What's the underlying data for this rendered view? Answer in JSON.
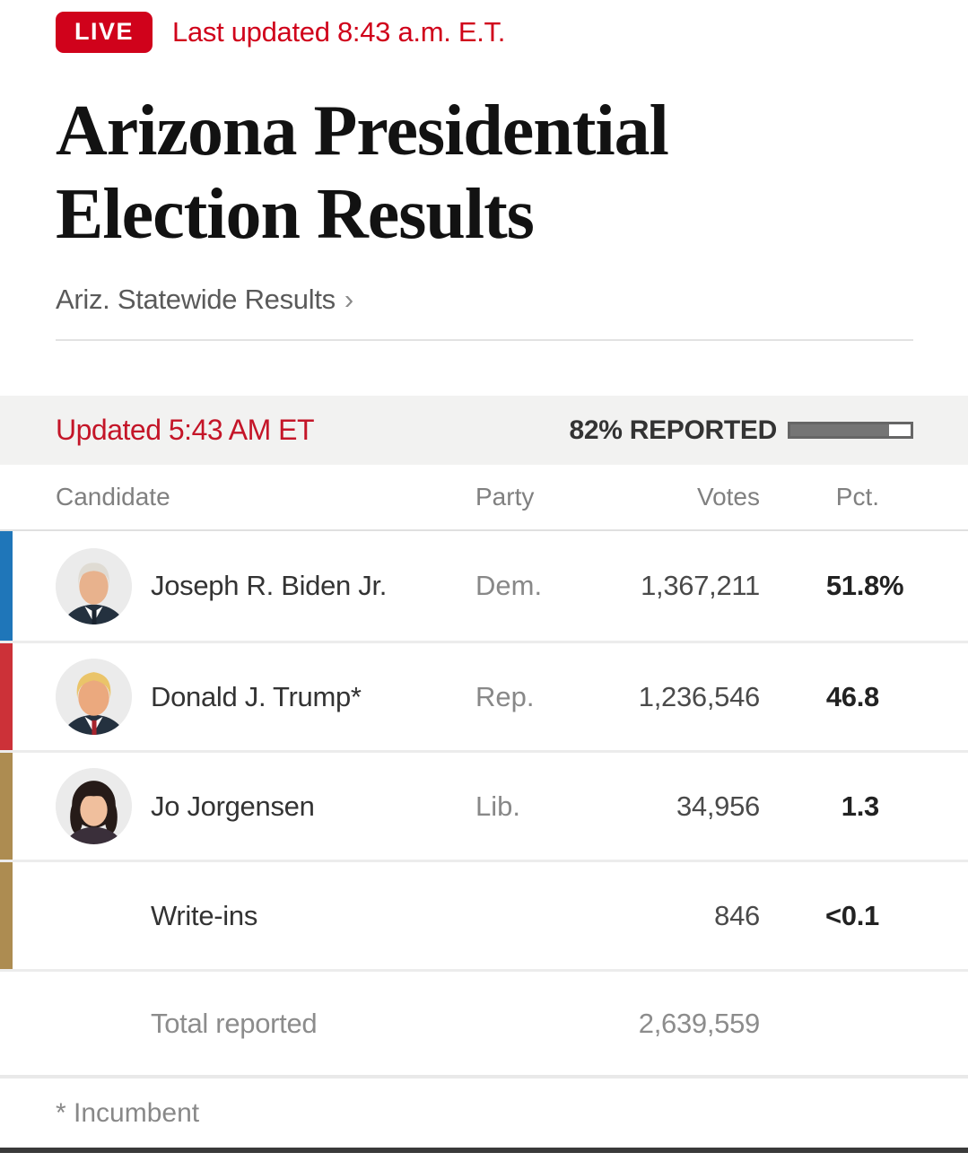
{
  "header": {
    "live_badge": "LIVE",
    "last_updated": "Last updated 8:43 a.m. E.T.",
    "title": "Arizona Presidential Election Results",
    "statewide_link_label": "Ariz. Statewide Results",
    "statewide_link_arrow": "›"
  },
  "status_bar": {
    "updated": "Updated 5:43 AM ET",
    "reported_label": "82% REPORTED",
    "reported_pct": 82
  },
  "table": {
    "headers": {
      "candidate": "Candidate",
      "party": "Party",
      "votes": "Votes",
      "pct": "Pct."
    },
    "rows": [
      {
        "name": "Joseph R. Biden Jr.",
        "party": "Dem.",
        "votes": "1,367,211",
        "pct": "51.8",
        "pct_suffix": "%",
        "color": "#1f76b9",
        "photo_icon": "biden-photo"
      },
      {
        "name": "Donald J. Trump*",
        "party": "Rep.",
        "votes": "1,236,546",
        "pct": "46.8",
        "pct_suffix": "",
        "color": "#cc3138",
        "photo_icon": "trump-photo"
      },
      {
        "name": "Jo Jorgensen",
        "party": "Lib.",
        "votes": "34,956",
        "pct": "1.3",
        "pct_suffix": "",
        "color": "#ad8c51",
        "photo_icon": "jorgensen-photo"
      },
      {
        "name": "Write-ins",
        "party": "",
        "votes": "846",
        "pct": "<0.1",
        "pct_suffix": "",
        "color": "#ad8c51",
        "photo_icon": null
      }
    ],
    "total": {
      "label": "Total reported",
      "votes": "2,639,559"
    },
    "footnote": "* Incumbent"
  },
  "colors": {
    "accent_red": "#d0021b",
    "updated_red": "#c41528",
    "dem_blue": "#1f76b9",
    "rep_red": "#cc3138",
    "lib_gold": "#ad8c51",
    "strip_bg": "#f2f2f1",
    "progress_fill": "#757575"
  }
}
